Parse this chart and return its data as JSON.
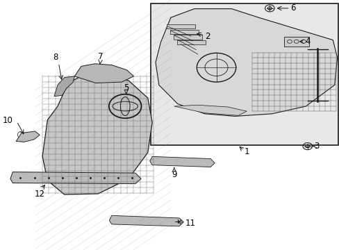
{
  "bg_color": "#ffffff",
  "box_bg": "#e8e8e8",
  "line_color": "#1a1a1a",
  "text_color": "#000000",
  "font_size": 9
}
